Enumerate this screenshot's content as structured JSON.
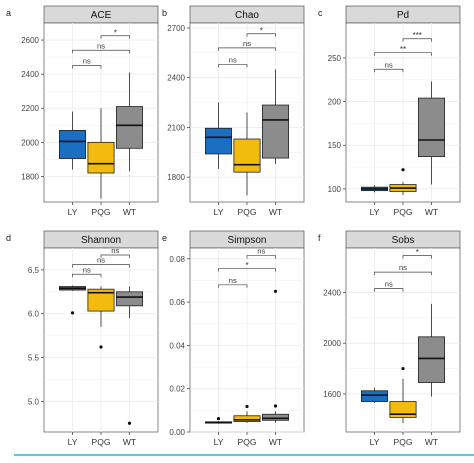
{
  "figure": {
    "bottom_rule_color": "#5fc9d6",
    "colors": {
      "LY": "#1a6fc2",
      "PQG": "#f2bb0d",
      "WT": "#8c8c8c"
    },
    "strip_color": "#d9d9d9",
    "grid_color": "#ebebeb"
  },
  "chart_data": [
    {
      "type": "box",
      "letter": "a",
      "title": "ACE",
      "categories": [
        "LY",
        "PQG",
        "WT"
      ],
      "ylim": [
        1650,
        2700
      ],
      "yticks": [
        1800,
        2000,
        2200,
        2400,
        2600
      ],
      "boxes": [
        {
          "category": "LY",
          "whisker_low": 1840,
          "q1": 1905,
          "median": 2005,
          "q3": 2070,
          "whisker_high": 2180,
          "outliers": []
        },
        {
          "category": "PQG",
          "whisker_low": 1670,
          "q1": 1820,
          "median": 1875,
          "q3": 2000,
          "whisker_high": 2200,
          "outliers": []
        },
        {
          "category": "WT",
          "whisker_low": 1830,
          "q1": 1965,
          "median": 2100,
          "q3": 2210,
          "whisker_high": 2410,
          "outliers": []
        }
      ],
      "brackets": [
        {
          "from": "LY",
          "to": "PQG",
          "label": "ns",
          "y": 2450
        },
        {
          "from": "LY",
          "to": "WT",
          "label": "ns",
          "y": 2540
        },
        {
          "from": "PQG",
          "to": "WT",
          "label": "*",
          "y": 2625
        }
      ]
    },
    {
      "type": "box",
      "letter": "b",
      "title": "Chao",
      "categories": [
        "LY",
        "PQG",
        "WT"
      ],
      "ylim": [
        1650,
        2730
      ],
      "yticks": [
        1800,
        2100,
        2400,
        2700
      ],
      "boxes": [
        {
          "category": "LY",
          "whisker_low": 1850,
          "q1": 1940,
          "median": 2040,
          "q3": 2095,
          "whisker_high": 2250,
          "outliers": []
        },
        {
          "category": "PQG",
          "whisker_low": 1690,
          "q1": 1830,
          "median": 1875,
          "q3": 2030,
          "whisker_high": 2190,
          "outliers": []
        },
        {
          "category": "WT",
          "whisker_low": 1880,
          "q1": 1915,
          "median": 2145,
          "q3": 2235,
          "whisker_high": 2450,
          "outliers": []
        }
      ],
      "brackets": [
        {
          "from": "LY",
          "to": "PQG",
          "label": "ns",
          "y": 2480
        },
        {
          "from": "LY",
          "to": "WT",
          "label": "ns",
          "y": 2580
        },
        {
          "from": "PQG",
          "to": "WT",
          "label": "*",
          "y": 2665
        }
      ]
    },
    {
      "type": "box",
      "letter": "c",
      "title": "Pd",
      "categories": [
        "LY",
        "PQG",
        "WT"
      ],
      "ylim": [
        85,
        290
      ],
      "yticks": [
        100,
        150,
        200,
        250
      ],
      "boxes": [
        {
          "category": "LY",
          "whisker_low": 96,
          "q1": 98,
          "median": 100,
          "q3": 102,
          "whisker_high": 104,
          "outliers": []
        },
        {
          "category": "PQG",
          "whisker_low": 93,
          "q1": 97,
          "median": 101,
          "q3": 105,
          "whisker_high": 108,
          "outliers": [
            122
          ]
        },
        {
          "category": "WT",
          "whisker_low": 105,
          "q1": 137,
          "median": 156,
          "q3": 204,
          "whisker_high": 223,
          "outliers": []
        }
      ],
      "brackets": [
        {
          "from": "LY",
          "to": "PQG",
          "label": "ns",
          "y": 237
        },
        {
          "from": "LY",
          "to": "WT",
          "label": "**",
          "y": 256
        },
        {
          "from": "PQG",
          "to": "WT",
          "label": "***",
          "y": 272
        }
      ]
    },
    {
      "type": "box",
      "letter": "d",
      "title": "Shannon",
      "categories": [
        "LY",
        "PQG",
        "WT"
      ],
      "ylim": [
        4.65,
        6.75
      ],
      "yticks": [
        5.0,
        5.5,
        6.0,
        6.5
      ],
      "boxes": [
        {
          "category": "LY",
          "whisker_low": 6.26,
          "q1": 6.27,
          "median": 6.29,
          "q3": 6.31,
          "whisker_high": 6.32,
          "outliers": [
            6.01
          ]
        },
        {
          "category": "PQG",
          "whisker_low": 5.85,
          "q1": 6.03,
          "median": 6.24,
          "q3": 6.28,
          "whisker_high": 6.31,
          "outliers": [
            5.62
          ]
        },
        {
          "category": "WT",
          "whisker_low": 5.95,
          "q1": 6.09,
          "median": 6.19,
          "q3": 6.25,
          "whisker_high": 6.31,
          "outliers": [
            4.75
          ]
        }
      ],
      "brackets": [
        {
          "from": "LY",
          "to": "PQG",
          "label": "ns",
          "y": 6.45
        },
        {
          "from": "LY",
          "to": "WT",
          "label": "ns",
          "y": 6.56
        },
        {
          "from": "PQG",
          "to": "WT",
          "label": "ns",
          "y": 6.67
        }
      ]
    },
    {
      "type": "box",
      "letter": "e",
      "title": "Simpson",
      "categories": [
        "LY",
        "PQG",
        "WT"
      ],
      "ylim": [
        0,
        0.085
      ],
      "yticks": [
        0.0,
        0.02,
        0.04,
        0.06,
        0.08
      ],
      "boxes": [
        {
          "category": "LY",
          "whisker_low": 0.0038,
          "q1": 0.0041,
          "median": 0.0044,
          "q3": 0.0047,
          "whisker_high": 0.005,
          "outliers": [
            0.0062
          ]
        },
        {
          "category": "PQG",
          "whisker_low": 0.0042,
          "q1": 0.0048,
          "median": 0.0056,
          "q3": 0.0075,
          "whisker_high": 0.0095,
          "outliers": [
            0.0118
          ]
        },
        {
          "category": "WT",
          "whisker_low": 0.0044,
          "q1": 0.0054,
          "median": 0.0063,
          "q3": 0.0082,
          "whisker_high": 0.0095,
          "outliers": [
            0.012,
            0.065
          ]
        }
      ],
      "brackets": [
        {
          "from": "LY",
          "to": "PQG",
          "label": "ns",
          "y": 0.068
        },
        {
          "from": "LY",
          "to": "WT",
          "label": "*",
          "y": 0.0755
        },
        {
          "from": "PQG",
          "to": "WT",
          "label": "ns",
          "y": 0.0815
        }
      ]
    },
    {
      "type": "box",
      "letter": "f",
      "title": "Sobs",
      "categories": [
        "LY",
        "PQG",
        "WT"
      ],
      "ylim": [
        1300,
        2750
      ],
      "yticks": [
        1600,
        2000,
        2400
      ],
      "boxes": [
        {
          "category": "LY",
          "whisker_low": 1530,
          "q1": 1540,
          "median": 1590,
          "q3": 1625,
          "whisker_high": 1650,
          "outliers": []
        },
        {
          "category": "PQG",
          "whisker_low": 1370,
          "q1": 1415,
          "median": 1440,
          "q3": 1540,
          "whisker_high": 1720,
          "outliers": [
            1800
          ]
        },
        {
          "category": "WT",
          "whisker_low": 1580,
          "q1": 1690,
          "median": 1880,
          "q3": 2050,
          "whisker_high": 2310,
          "outliers": []
        }
      ],
      "brackets": [
        {
          "from": "LY",
          "to": "PQG",
          "label": "ns",
          "y": 2430
        },
        {
          "from": "LY",
          "to": "WT",
          "label": "ns",
          "y": 2560
        },
        {
          "from": "PQG",
          "to": "WT",
          "label": "*",
          "y": 2690
        }
      ]
    }
  ]
}
